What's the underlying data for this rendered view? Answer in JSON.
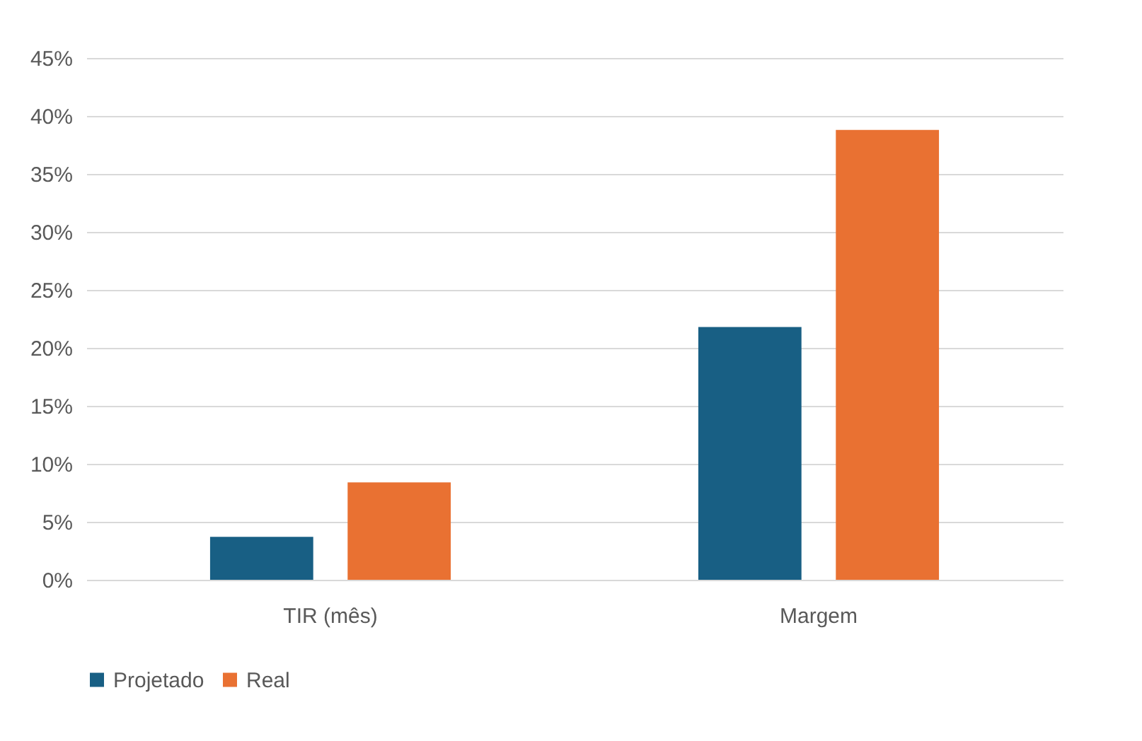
{
  "chart_data": {
    "type": "bar",
    "categories": [
      "TIR (mês)",
      "Margem"
    ],
    "series": [
      {
        "name": "Projetado",
        "color": "#185f84",
        "values": [
          3.7,
          21.8
        ]
      },
      {
        "name": "Real",
        "color": "#e97132",
        "values": [
          8.4,
          38.8
        ]
      }
    ],
    "ylim": [
      0,
      45
    ],
    "yticks": [
      {
        "value": 0,
        "label": "0%"
      },
      {
        "value": 5,
        "label": "5%"
      },
      {
        "value": 10,
        "label": "10%"
      },
      {
        "value": 15,
        "label": "15%"
      },
      {
        "value": 20,
        "label": "20%"
      },
      {
        "value": 25,
        "label": "25%"
      },
      {
        "value": 30,
        "label": "30%"
      },
      {
        "value": 35,
        "label": "35%"
      },
      {
        "value": 40,
        "label": "40%"
      },
      {
        "value": 45,
        "label": "45%"
      }
    ],
    "grid": "y",
    "legend": "bottom"
  }
}
